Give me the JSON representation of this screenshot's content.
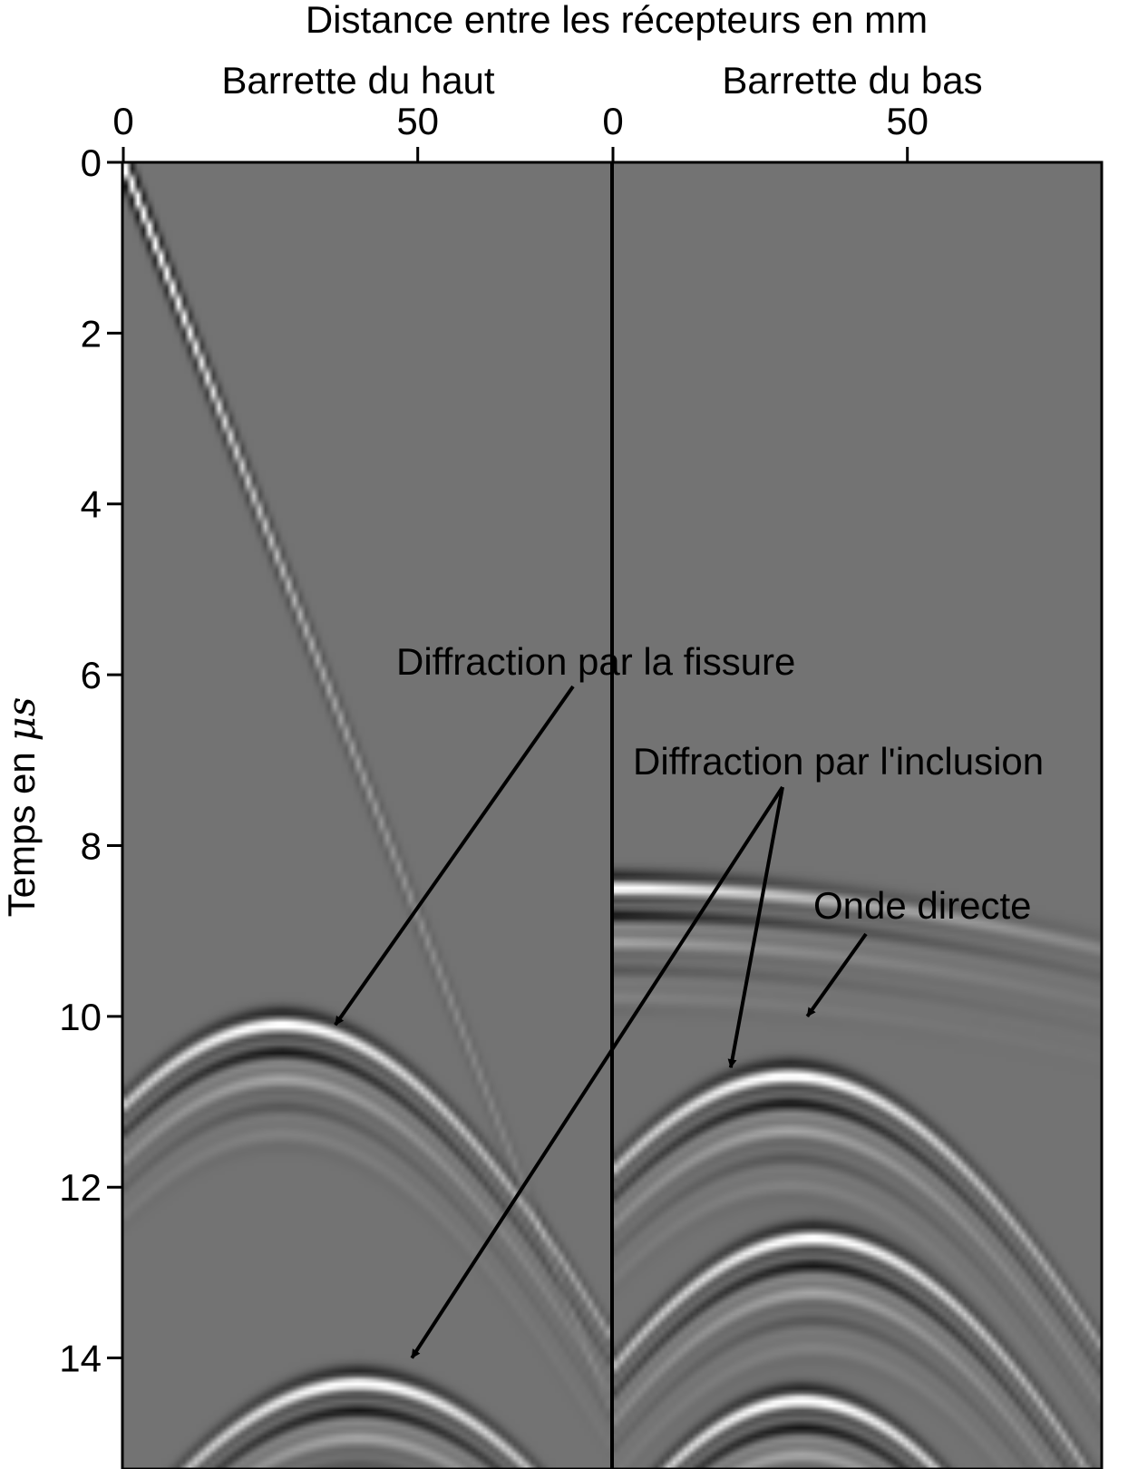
{
  "chart_data": {
    "type": "heatmap",
    "title": "Distance entre les récepteurs en mm",
    "ylabel": {
      "text": "Temps en ",
      "symbol": "μs"
    },
    "ylim": [
      0,
      15.3
    ],
    "yticks": [
      0,
      2,
      4,
      6,
      8,
      10,
      12,
      14
    ],
    "colormap": "grayscale seismic traces",
    "panels": [
      {
        "name": "Barrette du haut",
        "xlim": [
          0,
          83
        ],
        "xticks": [
          0,
          50
        ],
        "events": [
          {
            "kind": "linear",
            "x": [
              0,
              83
            ],
            "t": [
              0.0,
              14.6
            ]
          },
          {
            "kind": "hyperbola",
            "apex_x": 27,
            "apex_t": 10.1,
            "scale": 18
          },
          {
            "kind": "hyperbola",
            "apex_x": 40,
            "apex_t": 14.3,
            "scale": 16
          }
        ]
      },
      {
        "name": "Barrette du bas",
        "xlim": [
          0,
          83
        ],
        "xticks": [
          0,
          50
        ],
        "events": [
          {
            "kind": "hyperbola",
            "apex_x": 0,
            "apex_t": 8.5,
            "scale": 70
          },
          {
            "kind": "hyperbola",
            "apex_x": 30,
            "apex_t": 10.7,
            "scale": 18
          },
          {
            "kind": "hyperbola",
            "apex_x": 34,
            "apex_t": 12.6,
            "scale": 16
          },
          {
            "kind": "hyperbola",
            "apex_x": 32,
            "apex_t": 14.5,
            "scale": 14
          }
        ]
      }
    ],
    "annotations": [
      {
        "text": "Diffraction par la fissure",
        "arrow_to": [
          {
            "panel": 0,
            "x": 36,
            "t": 10.1
          }
        ]
      },
      {
        "text": "Diffraction par l'inclusion",
        "arrow_to": [
          {
            "panel": 1,
            "x": 20,
            "t": 10.6
          },
          {
            "panel": 0,
            "x": 49,
            "t": 14.0
          }
        ]
      },
      {
        "text": "Onde directe",
        "arrow_to": [
          {
            "panel": 1,
            "x": 33,
            "t": 10.0
          }
        ]
      }
    ]
  }
}
